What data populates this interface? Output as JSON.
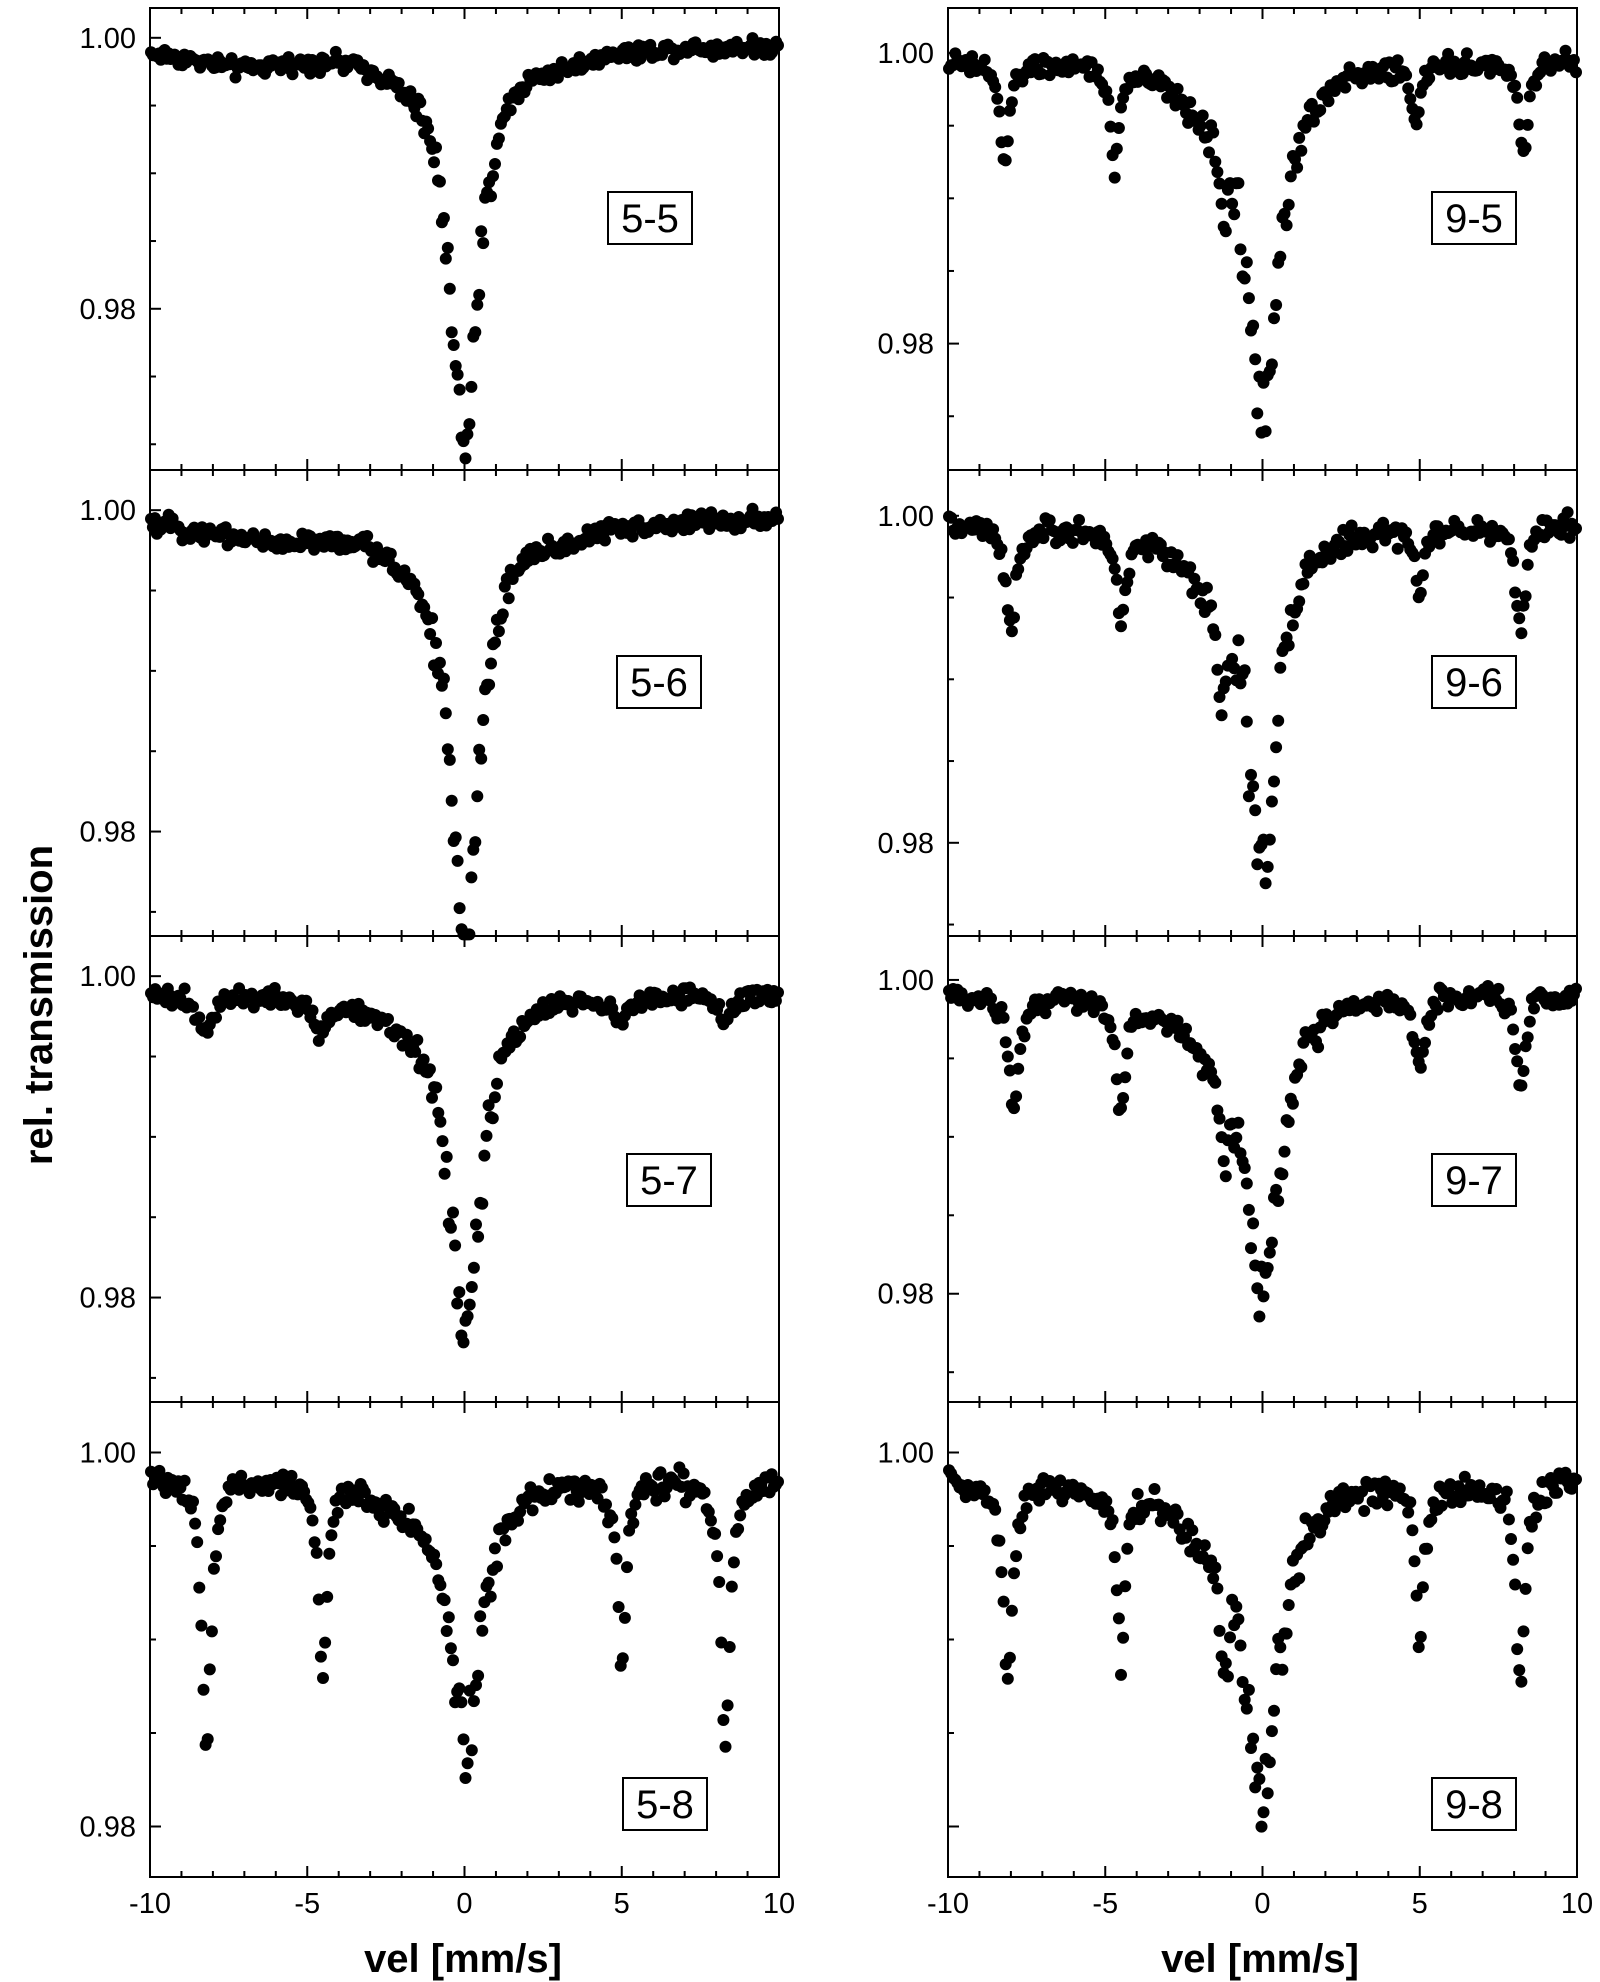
{
  "y_axis_title": "rel. transmission",
  "x_axis_title": "vel [mm/s]",
  "chart_data": [
    {
      "type": "scatter",
      "label": "5-5",
      "xlim": [
        -10,
        10
      ],
      "ylim": [
        0.9681,
        1.0022
      ],
      "yticks": [
        {
          "value": 1.0,
          "label": "1.00"
        },
        {
          "value": 0.98,
          "label": "0.98"
        }
      ],
      "xticks": [],
      "baseline": 0.9995,
      "noise": 0.0006,
      "spread": 0.0015,
      "n": 320,
      "lines": [
        {
          "pos": 0,
          "depth": 0.0285,
          "width": 1.15
        }
      ],
      "bg": [
        {
          "pos": -7,
          "depth": 0.0015,
          "width": 4.5
        },
        {
          "pos": -2,
          "depth": 0.001,
          "width": 2
        },
        {
          "pos": 3,
          "depth": 0.0008,
          "width": 2.5
        }
      ]
    },
    {
      "type": "scatter",
      "label": "9-5",
      "xlim": [
        -10,
        10
      ],
      "ylim": [
        0.9713,
        1.0031
      ],
      "yticks": [
        {
          "value": 1.0,
          "label": "1.00"
        },
        {
          "value": 0.98,
          "label": "0.98"
        }
      ],
      "xticks": [],
      "baseline": 0.9995,
      "noise": 0.0007,
      "spread": 0.0022,
      "n": 300,
      "lines": [
        {
          "pos": -8.2,
          "depth": 0.007,
          "width": 0.35
        },
        {
          "pos": -4.7,
          "depth": 0.007,
          "width": 0.3
        },
        {
          "pos": -1.25,
          "depth": 0.005,
          "width": 0.3
        },
        {
          "pos": 0,
          "depth": 0.024,
          "width": 1.25
        },
        {
          "pos": 4.9,
          "depth": 0.004,
          "width": 0.3
        },
        {
          "pos": 8.3,
          "depth": 0.0065,
          "width": 0.35
        }
      ],
      "bg": [
        {
          "pos": -2,
          "depth": 0.002,
          "width": 2
        }
      ]
    },
    {
      "type": "scatter",
      "label": "5-6",
      "xlim": [
        -10,
        10
      ],
      "ylim": [
        0.9735,
        1.0025
      ],
      "yticks": [
        {
          "value": 1.0,
          "label": "1.00"
        },
        {
          "value": 0.98,
          "label": "0.98"
        }
      ],
      "xticks": [],
      "baseline": 0.9995,
      "noise": 0.0006,
      "spread": 0.0018,
      "n": 320,
      "lines": [
        {
          "pos": 0,
          "depth": 0.026,
          "width": 1.15
        }
      ],
      "bg": [
        {
          "pos": -6,
          "depth": 0.0012,
          "width": 5
        },
        {
          "pos": -2,
          "depth": 0.001,
          "width": 2
        },
        {
          "pos": 3,
          "depth": 0.0008,
          "width": 2.5
        }
      ]
    },
    {
      "type": "scatter",
      "label": "9-6",
      "xlim": [
        -10,
        10
      ],
      "ylim": [
        0.9743,
        1.0028
      ],
      "yticks": [
        {
          "value": 1.0,
          "label": "1.00"
        },
        {
          "value": 0.98,
          "label": "0.98"
        }
      ],
      "xticks": [],
      "baseline": 0.9995,
      "noise": 0.0007,
      "spread": 0.0022,
      "n": 300,
      "lines": [
        {
          "pos": -8.0,
          "depth": 0.0065,
          "width": 0.4
        },
        {
          "pos": -4.5,
          "depth": 0.0055,
          "width": 0.35
        },
        {
          "pos": -1.3,
          "depth": 0.006,
          "width": 0.35
        },
        {
          "pos": 0,
          "depth": 0.02,
          "width": 1.2
        },
        {
          "pos": 5.0,
          "depth": 0.004,
          "width": 0.35
        },
        {
          "pos": 8.2,
          "depth": 0.0065,
          "width": 0.35
        }
      ],
      "bg": [
        {
          "pos": -2,
          "depth": 0.002,
          "width": 2
        }
      ]
    },
    {
      "type": "scatter",
      "label": "5-7",
      "xlim": [
        -10,
        10
      ],
      "ylim": [
        0.9735,
        1.0025
      ],
      "yticks": [
        {
          "value": 1.0,
          "label": "1.00"
        },
        {
          "value": 0.98,
          "label": "0.98"
        }
      ],
      "xticks": [],
      "baseline": 0.999,
      "noise": 0.0006,
      "spread": 0.0018,
      "n": 300,
      "lines": [
        {
          "pos": -8.3,
          "depth": 0.0025,
          "width": 0.6
        },
        {
          "pos": -4.6,
          "depth": 0.002,
          "width": 0.6
        },
        {
          "pos": 0,
          "depth": 0.0205,
          "width": 1.2
        },
        {
          "pos": 4.9,
          "depth": 0.0015,
          "width": 0.6
        },
        {
          "pos": 8.3,
          "depth": 0.0015,
          "width": 0.6
        }
      ],
      "bg": [
        {
          "pos": -2,
          "depth": 0.001,
          "width": 2
        }
      ]
    },
    {
      "type": "scatter",
      "label": "9-7",
      "xlim": [
        -10,
        10
      ],
      "ylim": [
        0.9731,
        1.0028
      ],
      "yticks": [
        {
          "value": 1.0,
          "label": "1.00"
        },
        {
          "value": 0.98,
          "label": "0.98"
        }
      ],
      "xticks": [],
      "baseline": 0.9992,
      "noise": 0.0007,
      "spread": 0.002,
      "n": 300,
      "lines": [
        {
          "pos": -7.9,
          "depth": 0.007,
          "width": 0.4
        },
        {
          "pos": -4.5,
          "depth": 0.007,
          "width": 0.35
        },
        {
          "pos": -1.2,
          "depth": 0.006,
          "width": 0.35
        },
        {
          "pos": 0,
          "depth": 0.019,
          "width": 1.25
        },
        {
          "pos": 5.0,
          "depth": 0.005,
          "width": 0.35
        },
        {
          "pos": 8.2,
          "depth": 0.006,
          "width": 0.35
        }
      ],
      "bg": [
        {
          "pos": -2,
          "depth": 0.002,
          "width": 2
        }
      ]
    },
    {
      "type": "scatter",
      "label": "5-8",
      "xlim": [
        -10,
        10
      ],
      "ylim": [
        0.9773,
        1.0027
      ],
      "yticks": [
        {
          "value": 1.0,
          "label": "1.00"
        },
        {
          "value": 0.98,
          "label": "0.98"
        }
      ],
      "xticks": [
        {
          "value": -10,
          "label": "-10"
        },
        {
          "value": -5,
          "label": "-5"
        },
        {
          "value": 0,
          "label": "0"
        },
        {
          "value": 5,
          "label": "5"
        },
        {
          "value": 10,
          "label": "10"
        }
      ],
      "baseline": 0.9987,
      "noise": 0.0007,
      "spread": 0.002,
      "n": 300,
      "lines": [
        {
          "pos": -8.2,
          "depth": 0.0145,
          "width": 0.35
        },
        {
          "pos": -4.5,
          "depth": 0.0105,
          "width": 0.3
        },
        {
          "pos": 0,
          "depth": 0.0145,
          "width": 1.2
        },
        {
          "pos": 5.0,
          "depth": 0.0105,
          "width": 0.3
        },
        {
          "pos": 8.3,
          "depth": 0.0145,
          "width": 0.35
        }
      ],
      "bg": [
        {
          "pos": -2,
          "depth": 0.001,
          "width": 2
        }
      ]
    },
    {
      "type": "scatter",
      "label": "9-8",
      "xlim": [
        -10,
        10
      ],
      "ylim": [
        0.9773,
        1.0027
      ],
      "yticks": [
        {
          "value": 1.0,
          "label": "1.00"
        }
      ],
      "xticks": [
        {
          "value": -10,
          "label": "-10"
        },
        {
          "value": -5,
          "label": "-5"
        },
        {
          "value": 0,
          "label": "0"
        },
        {
          "value": 5,
          "label": "5"
        },
        {
          "value": 10,
          "label": "10"
        }
      ],
      "baseline": 0.9985,
      "noise": 0.0008,
      "spread": 0.002,
      "n": 300,
      "lines": [
        {
          "pos": -8.1,
          "depth": 0.011,
          "width": 0.35
        },
        {
          "pos": -4.5,
          "depth": 0.009,
          "width": 0.3
        },
        {
          "pos": -1.2,
          "depth": 0.006,
          "width": 0.3
        },
        {
          "pos": 0,
          "depth": 0.0165,
          "width": 1.25
        },
        {
          "pos": 5.0,
          "depth": 0.0085,
          "width": 0.3
        },
        {
          "pos": 8.2,
          "depth": 0.0105,
          "width": 0.35
        }
      ],
      "bg": [
        {
          "pos": -2,
          "depth": 0.002,
          "width": 2
        }
      ]
    }
  ]
}
